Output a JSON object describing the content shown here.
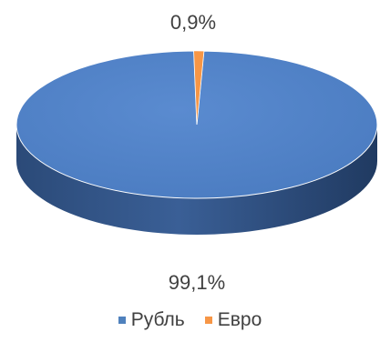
{
  "chart_data": {
    "type": "pie",
    "style": "3d",
    "slices": [
      {
        "name": "Рубль",
        "value": 99.1,
        "label": "99,1%",
        "color": "#4f81bd"
      },
      {
        "name": "Евро",
        "value": 0.9,
        "label": "0,9%",
        "color": "#f79646"
      }
    ],
    "legend_position": "bottom"
  }
}
